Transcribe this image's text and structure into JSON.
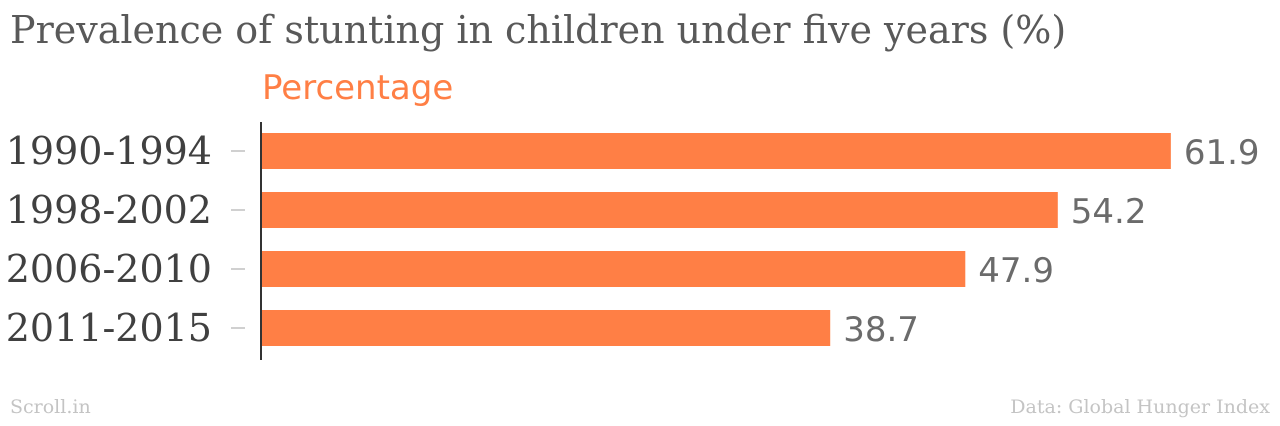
{
  "page": {
    "title": "Prevalence of stunting in children under five years (%)",
    "source_left": "Scroll.in",
    "source_right": "Data: Global Hunger Index"
  },
  "colors": {
    "bar": "#ff7f45",
    "legend_text": "#ff7f45",
    "axis": "#333333",
    "tick": "#d0d0d0"
  },
  "chart_data": {
    "type": "bar",
    "orientation": "horizontal",
    "title": "Prevalence of stunting in children under five years (%)",
    "categories": [
      "1990-1994",
      "1998-2002",
      "2006-2010",
      "2011-2015"
    ],
    "series": [
      {
        "name": "Percentage",
        "values": [
          61.9,
          54.2,
          47.9,
          38.7
        ]
      }
    ],
    "xlim": [
      0,
      63
    ],
    "grid": false,
    "legend_position": "top-left",
    "data_labels": true
  }
}
